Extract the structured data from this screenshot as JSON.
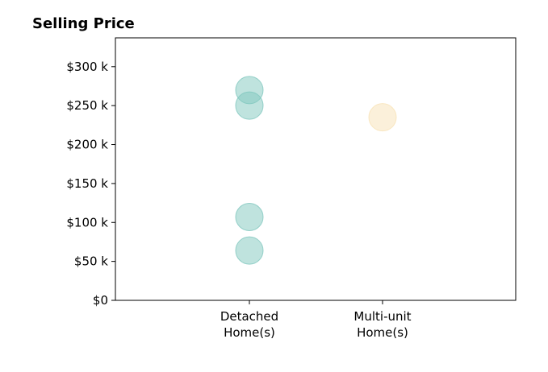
{
  "chart_data": {
    "type": "scatter",
    "title": "Selling Price",
    "xlabel": "",
    "ylabel": "",
    "categories": [
      [
        "Detached",
        "Home(s)"
      ],
      [
        "Multi-unit",
        "Home(s)"
      ]
    ],
    "ylim": [
      0,
      337000
    ],
    "yticks": [
      0,
      50000,
      100000,
      150000,
      200000,
      250000,
      300000
    ],
    "ytick_labels": [
      "$0",
      "$50 k",
      "$100 k",
      "$150 k",
      "$200 k",
      "$250 k",
      "$300 k"
    ],
    "grid": false,
    "legend": "none",
    "series": [
      {
        "category": 0,
        "values": [
          270000,
          250000,
          107000,
          64000
        ],
        "color": "#7fc7be"
      },
      {
        "category": 1,
        "values": [
          235000
        ],
        "color": "#f7e2b5"
      }
    ]
  }
}
